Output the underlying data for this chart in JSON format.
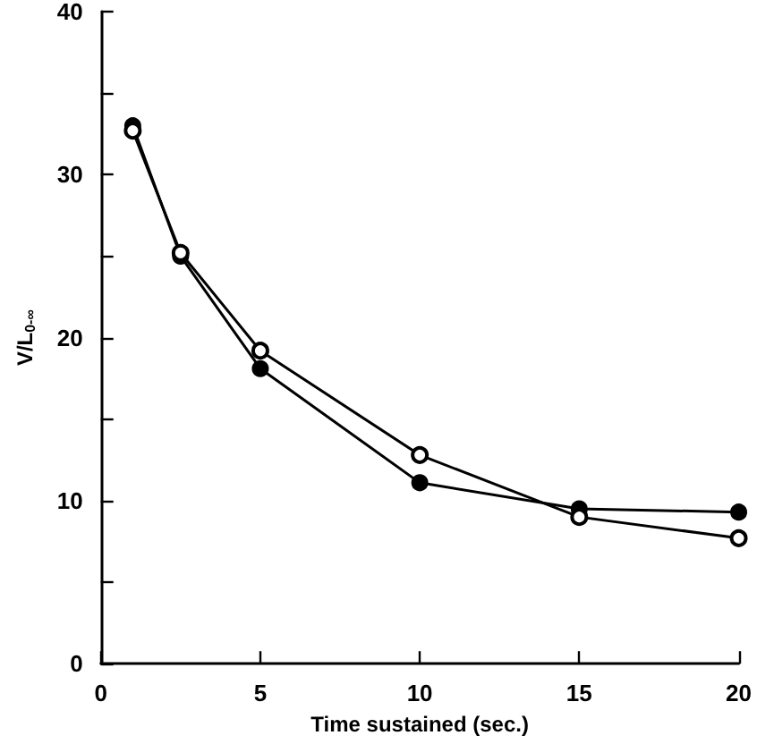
{
  "chart_data": {
    "type": "line",
    "xlabel": "Time sustained (sec.)",
    "ylabel": "V/L$_{0-∞}$",
    "xlim": [
      0,
      20
    ],
    "xticks": [
      0,
      5,
      10,
      15,
      20
    ],
    "ylim": [
      0,
      40
    ],
    "yticks": [
      0,
      {
        "value": 5,
        "label": null
      },
      10,
      {
        "value": 15,
        "label": null
      },
      20,
      {
        "value": 25,
        "label": null
      },
      30,
      {
        "value": 35,
        "label": null
      },
      40
    ],
    "grid": false,
    "line_style": "solid",
    "series": [
      {
        "color": "#000000",
        "marker": "circle",
        "x": [
          1,
          2.5,
          5,
          10,
          15,
          20
        ],
        "values": [
          33,
          25,
          18.1,
          11.1,
          9.5,
          9.3
        ]
      },
      {
        "color": "#000000",
        "marker": "open_circle",
        "x": [
          1,
          2.5,
          5,
          10,
          15,
          20
        ],
        "values": [
          32.7,
          25.2,
          19.2,
          12.8,
          9.0,
          7.7
        ]
      }
    ]
  }
}
